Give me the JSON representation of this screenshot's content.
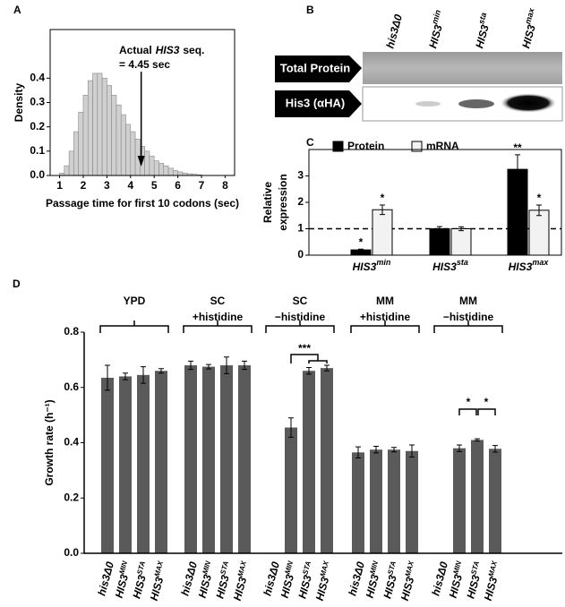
{
  "panel_labels": [
    "A",
    "B",
    "C",
    "D"
  ],
  "blot": {
    "lanes": [
      "his3Δ0",
      {
        "base": "HIS3",
        "sup": "min"
      },
      {
        "base": "HIS3",
        "sup": "sta"
      },
      {
        "base": "HIS3",
        "sup": "max"
      }
    ],
    "rows": [
      "Total Protein",
      "His3 (αHA)"
    ]
  },
  "chart_data": [
    {
      "type": "histogram",
      "ylabel": "Density",
      "xlabel": "Passage time for first 10 codons (sec)",
      "bins": [
        1.0,
        1.2,
        1.4,
        1.6,
        1.8,
        2.0,
        2.2,
        2.4,
        2.6,
        2.8,
        3.0,
        3.2,
        3.4,
        3.6,
        3.8,
        4.0,
        4.2,
        4.4,
        4.6,
        4.8,
        5.0,
        5.2,
        5.4,
        5.6,
        5.8,
        6.0,
        6.2,
        6.4,
        6.6,
        6.8,
        7.0
      ],
      "values": [
        0.01,
        0.04,
        0.1,
        0.18,
        0.26,
        0.33,
        0.39,
        0.42,
        0.42,
        0.4,
        0.37,
        0.33,
        0.29,
        0.25,
        0.21,
        0.18,
        0.15,
        0.12,
        0.1,
        0.08,
        0.06,
        0.05,
        0.04,
        0.03,
        0.02,
        0.015,
        0.01,
        0.007,
        0.005,
        0.003
      ],
      "color": "#d0d0d0",
      "edge_color": "#888888",
      "xlim": [
        0.6,
        8.4
      ],
      "xticks": [
        1,
        2,
        3,
        4,
        5,
        6,
        7,
        8
      ],
      "ylim": [
        0,
        0.6
      ],
      "yticks": [
        {
          "value": 0,
          "label": "0.0"
        },
        {
          "value": 0.1,
          "label": "0.1"
        },
        {
          "value": 0.2,
          "label": "0.2"
        },
        {
          "value": 0.3,
          "label": "0.3"
        },
        {
          "value": 0.4,
          "label": "0.4"
        }
      ],
      "annotation": {
        "text": [
          "Actual",
          "HIS3",
          "seq."
        ],
        "value_text": "= 4.45 sec",
        "x": 4.45
      }
    },
    {
      "type": "bar",
      "ylabel": [
        "Relative",
        "expression"
      ],
      "categories": [
        {
          "base": "HIS3",
          "sup": "min"
        },
        {
          "base": "HIS3",
          "sup": "sta"
        },
        {
          "base": "HIS3",
          "sup": "max"
        }
      ],
      "series": [
        {
          "name": "Protein",
          "color": "#000000",
          "values": [
            0.2,
            1.0,
            3.25
          ],
          "errors": [
            0.03,
            0.08,
            0.55
          ],
          "significance": [
            "*",
            null,
            "**"
          ]
        },
        {
          "name": "mRNA",
          "color": "#f2f2f2",
          "values": [
            1.72,
            1.0,
            1.7
          ],
          "errors": [
            0.18,
            0.07,
            0.2
          ],
          "significance": [
            "*",
            null,
            "*"
          ]
        }
      ],
      "reference_line": 1,
      "ylim": [
        0,
        4
      ],
      "yticks": [
        0,
        1,
        2,
        3
      ],
      "legend": "top"
    },
    {
      "type": "bar",
      "ylabel": "Growth rate (h⁻¹)",
      "groups": [
        [
          "YPD"
        ],
        [
          "SC",
          "+histidine"
        ],
        [
          "SC",
          "−histidine"
        ],
        [
          "MM",
          "+histidine"
        ],
        [
          "MM",
          "−histidine"
        ]
      ],
      "categories": [
        "his3Δ0",
        {
          "base": "HIS3",
          "sup": "MIN"
        },
        {
          "base": "HIS3",
          "sup": "STA"
        },
        {
          "base": "HIS3",
          "sup": "MAX"
        },
        "his3Δ0",
        {
          "base": "HIS3",
          "sup": "MIN"
        },
        {
          "base": "HIS3",
          "sup": "STA"
        },
        {
          "base": "HIS3",
          "sup": "MAX"
        },
        "his3Δ0",
        {
          "base": "HIS3",
          "sup": "MIN"
        },
        {
          "base": "HIS3",
          "sup": "STA"
        },
        {
          "base": "HIS3",
          "sup": "MAX"
        },
        "his3Δ0",
        {
          "base": "HIS3",
          "sup": "MIN"
        },
        {
          "base": "HIS3",
          "sup": "STA"
        },
        {
          "base": "HIS3",
          "sup": "MAX"
        },
        "his3Δ0",
        {
          "base": "HIS3",
          "sup": "MIN"
        },
        {
          "base": "HIS3",
          "sup": "STA"
        },
        {
          "base": "HIS3",
          "sup": "MAX"
        }
      ],
      "color": "#5a5a5a",
      "values": [
        0.635,
        0.64,
        0.645,
        0.66,
        0.68,
        0.675,
        0.68,
        0.68,
        null,
        0.455,
        0.66,
        0.67,
        0.365,
        0.375,
        0.375,
        0.37,
        null,
        0.38,
        0.41,
        0.378
      ],
      "errors": [
        0.045,
        0.012,
        0.03,
        0.008,
        0.015,
        0.008,
        0.03,
        0.015,
        null,
        0.035,
        0.012,
        0.01,
        0.02,
        0.012,
        0.008,
        0.022,
        null,
        0.012,
        0.004,
        0.012
      ],
      "significance": [
        "***",
        "*",
        "*"
      ],
      "ylim": [
        0,
        0.8
      ],
      "yticks": [
        {
          "value": 0,
          "label": "0.0"
        },
        {
          "value": 0.2,
          "label": "0.2"
        },
        {
          "value": 0.4,
          "label": "0.4"
        },
        {
          "value": 0.6,
          "label": "0.6"
        },
        {
          "value": 0.8,
          "label": "0.8"
        }
      ]
    }
  ]
}
